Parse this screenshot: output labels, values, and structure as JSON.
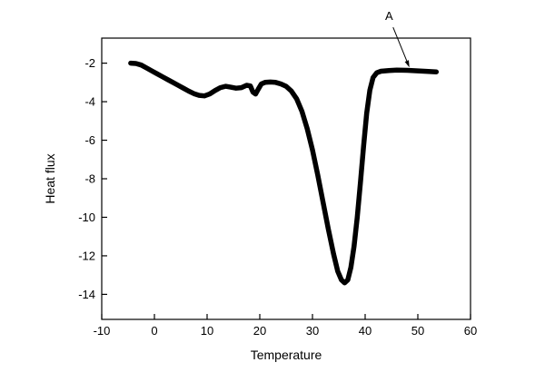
{
  "figure": {
    "background": "#ffffff",
    "curve_color": "#000000"
  },
  "chart_data": {
    "type": "line",
    "title": "",
    "xlabel": "Temperature",
    "ylabel": "Heat flux",
    "xlim": [
      -10,
      60
    ],
    "ylim": [
      -15.3,
      -0.7
    ],
    "xticks": [
      -10,
      0,
      10,
      20,
      30,
      40,
      50,
      60
    ],
    "yticks": [
      -14,
      -12,
      -10,
      -8,
      -6,
      -4,
      -2
    ],
    "grid": false,
    "legend": null,
    "series": [
      {
        "name": "heat-flux-curve",
        "color": "#000000",
        "line_width": 5.5,
        "points": [
          [
            -4.5,
            -2.0
          ],
          [
            -3.5,
            -2.02
          ],
          [
            -2.5,
            -2.1
          ],
          [
            -1.5,
            -2.25
          ],
          [
            -0.5,
            -2.4
          ],
          [
            0.5,
            -2.55
          ],
          [
            1.5,
            -2.7
          ],
          [
            2.5,
            -2.85
          ],
          [
            3.5,
            -3.0
          ],
          [
            4.5,
            -3.15
          ],
          [
            5.5,
            -3.3
          ],
          [
            6.5,
            -3.45
          ],
          [
            7.5,
            -3.58
          ],
          [
            8.5,
            -3.67
          ],
          [
            9.5,
            -3.7
          ],
          [
            10.5,
            -3.6
          ],
          [
            11.5,
            -3.42
          ],
          [
            12.5,
            -3.27
          ],
          [
            13.5,
            -3.2
          ],
          [
            14.5,
            -3.25
          ],
          [
            15.5,
            -3.3
          ],
          [
            16.5,
            -3.27
          ],
          [
            17.5,
            -3.15
          ],
          [
            18.2,
            -3.18
          ],
          [
            18.7,
            -3.5
          ],
          [
            19.2,
            -3.6
          ],
          [
            19.7,
            -3.35
          ],
          [
            20.3,
            -3.08
          ],
          [
            21,
            -3.0
          ],
          [
            22,
            -2.98
          ],
          [
            23,
            -3.0
          ],
          [
            24,
            -3.08
          ],
          [
            25,
            -3.2
          ],
          [
            26,
            -3.45
          ],
          [
            27,
            -3.85
          ],
          [
            28,
            -4.5
          ],
          [
            29,
            -5.4
          ],
          [
            30,
            -6.5
          ],
          [
            31,
            -7.8
          ],
          [
            32,
            -9.2
          ],
          [
            33,
            -10.6
          ],
          [
            34,
            -11.9
          ],
          [
            34.8,
            -12.8
          ],
          [
            35.5,
            -13.25
          ],
          [
            36.1,
            -13.4
          ],
          [
            36.7,
            -13.25
          ],
          [
            37.3,
            -12.6
          ],
          [
            37.9,
            -11.5
          ],
          [
            38.5,
            -10.0
          ],
          [
            39.1,
            -8.2
          ],
          [
            39.7,
            -6.3
          ],
          [
            40.3,
            -4.6
          ],
          [
            40.9,
            -3.4
          ],
          [
            41.5,
            -2.75
          ],
          [
            42.2,
            -2.5
          ],
          [
            43,
            -2.42
          ],
          [
            44.5,
            -2.38
          ],
          [
            46,
            -2.36
          ],
          [
            48,
            -2.37
          ],
          [
            50,
            -2.4
          ],
          [
            52,
            -2.43
          ],
          [
            53.5,
            -2.45
          ]
        ]
      }
    ],
    "annotations": [
      {
        "label": "A",
        "arrow_from": [
          45.3,
          -0.14
        ],
        "arrow_to": [
          48.4,
          -2.22
        ]
      }
    ]
  }
}
